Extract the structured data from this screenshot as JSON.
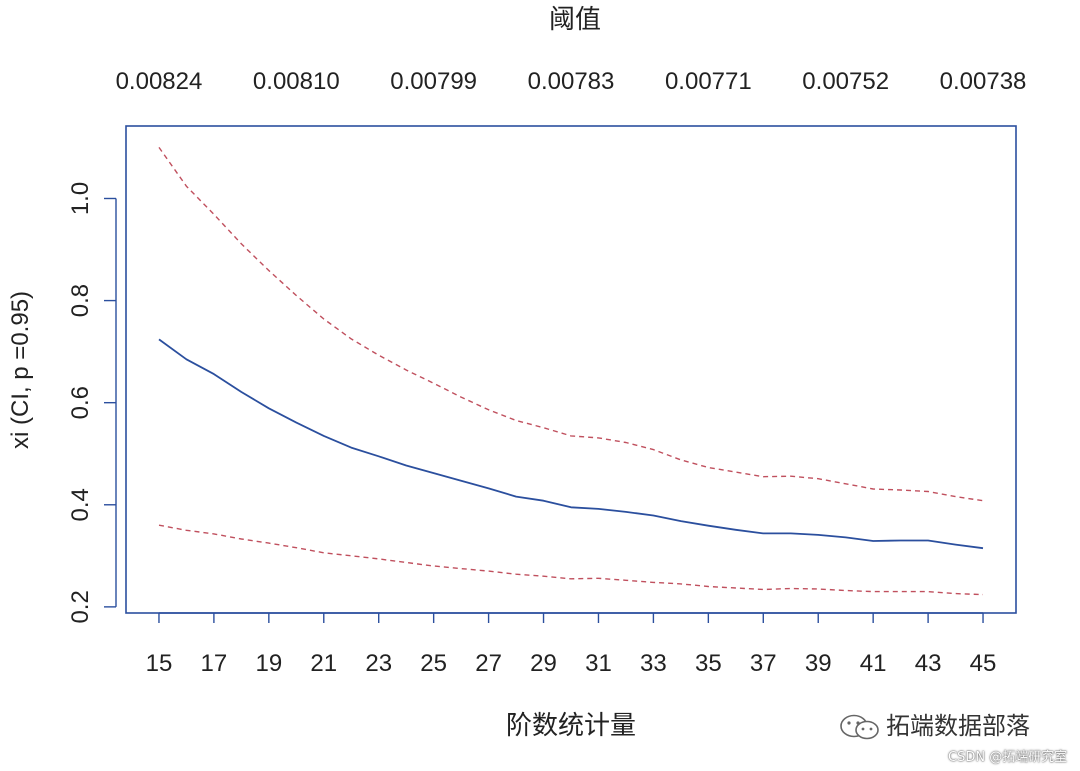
{
  "chart_data": {
    "type": "line",
    "title": "阈值",
    "xlabel": "阶数统计量",
    "ylabel": "xi (CI, p =0.95)",
    "x_ticks": [
      "15",
      "17",
      "19",
      "21",
      "23",
      "25",
      "27",
      "29",
      "31",
      "33",
      "35",
      "37",
      "39",
      "41",
      "43",
      "45"
    ],
    "top_ticks": [
      {
        "x": 15,
        "label": "0.00824"
      },
      {
        "x": 20,
        "label": "0.00810"
      },
      {
        "x": 25,
        "label": "0.00799"
      },
      {
        "x": 30,
        "label": "0.00783"
      },
      {
        "x": 35,
        "label": "0.00771"
      },
      {
        "x": 40,
        "label": "0.00752"
      },
      {
        "x": 45,
        "label": "0.00738"
      }
    ],
    "y_ticks": [
      "0.2",
      "0.4",
      "0.6",
      "0.8",
      "1.0"
    ],
    "xlim": [
      13.8,
      46.2
    ],
    "ylim": [
      0.188,
      1.142
    ],
    "x": [
      15,
      16,
      17,
      18,
      19,
      20,
      21,
      22,
      23,
      24,
      25,
      26,
      27,
      28,
      29,
      30,
      31,
      32,
      33,
      34,
      35,
      36,
      37,
      38,
      39,
      40,
      41,
      42,
      43,
      44,
      45
    ],
    "series": [
      {
        "role": "estimate",
        "color": "#2b4f9e",
        "style": "solid",
        "values": [
          0.724,
          0.685,
          0.656,
          0.621,
          0.589,
          0.561,
          0.535,
          0.512,
          0.495,
          0.477,
          0.462,
          0.447,
          0.432,
          0.416,
          0.408,
          0.395,
          0.392,
          0.386,
          0.379,
          0.368,
          0.359,
          0.351,
          0.344,
          0.344,
          0.341,
          0.336,
          0.329,
          0.33,
          0.33,
          0.322,
          0.315
        ]
      },
      {
        "role": "upper",
        "color": "#c0505e",
        "style": "dashed",
        "values": [
          1.1,
          1.024,
          0.969,
          0.911,
          0.859,
          0.81,
          0.764,
          0.725,
          0.693,
          0.664,
          0.638,
          0.611,
          0.586,
          0.565,
          0.551,
          0.535,
          0.531,
          0.522,
          0.508,
          0.488,
          0.473,
          0.464,
          0.455,
          0.456,
          0.451,
          0.441,
          0.431,
          0.429,
          0.426,
          0.416,
          0.408
        ]
      },
      {
        "role": "lower",
        "color": "#c0505e",
        "style": "dashed",
        "values": [
          0.36,
          0.35,
          0.343,
          0.333,
          0.325,
          0.316,
          0.306,
          0.3,
          0.294,
          0.287,
          0.28,
          0.275,
          0.27,
          0.264,
          0.26,
          0.255,
          0.256,
          0.252,
          0.248,
          0.245,
          0.24,
          0.237,
          0.234,
          0.236,
          0.235,
          0.232,
          0.23,
          0.23,
          0.23,
          0.226,
          0.224
        ]
      }
    ],
    "grid": false,
    "frame_color": "#2b4f9e"
  },
  "watermarks": {
    "primary": "拓端数据部落",
    "secondary": "CSDN @拓端研究室"
  }
}
